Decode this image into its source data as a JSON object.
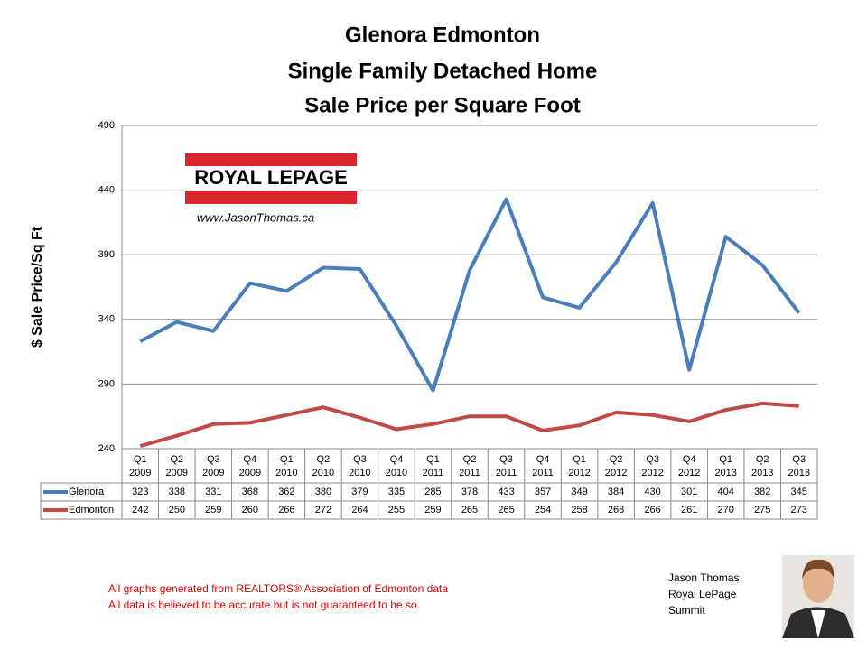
{
  "chart_data": {
    "type": "line",
    "title": [
      "Glenora Edmonton",
      "Single Family Detached Home",
      "Sale Price per Square Foot"
    ],
    "y_label": "$ Sale Price/Sq Ft",
    "categories": [
      [
        "Q1",
        "2009"
      ],
      [
        "Q2",
        "2009"
      ],
      [
        "Q3",
        "2009"
      ],
      [
        "Q4",
        "2009"
      ],
      [
        "Q1",
        "2010"
      ],
      [
        "Q2",
        "2010"
      ],
      [
        "Q3",
        "2010"
      ],
      [
        "Q4",
        "2010"
      ],
      [
        "Q1",
        "2011"
      ],
      [
        "Q2",
        "2011"
      ],
      [
        "Q3",
        "2011"
      ],
      [
        "Q4",
        "2011"
      ],
      [
        "Q1",
        "2012"
      ],
      [
        "Q2",
        "2012"
      ],
      [
        "Q3",
        "2012"
      ],
      [
        "Q4",
        "2012"
      ],
      [
        "Q1",
        "2013"
      ],
      [
        "Q2",
        "2013"
      ],
      [
        "Q3",
        "2013"
      ]
    ],
    "series": [
      {
        "name": "Glenora",
        "color": "#4a7ebb",
        "values": [
          323,
          338,
          331,
          368,
          362,
          380,
          379,
          335,
          285,
          378,
          433,
          357,
          349,
          384,
          430,
          301,
          404,
          382,
          345
        ]
      },
      {
        "name": "Edmonton",
        "color": "#be4b48",
        "values": [
          242,
          250,
          259,
          260,
          266,
          272,
          264,
          255,
          259,
          265,
          265,
          254,
          258,
          268,
          266,
          261,
          270,
          275,
          273
        ]
      }
    ],
    "ylim": [
      240,
      490
    ],
    "yticks": [
      240,
      290,
      340,
      390,
      440,
      490
    ],
    "grid": true
  },
  "logo": {
    "brand": "ROYAL LEPAGE",
    "url": "www.JasonThomas.ca"
  },
  "footnotes": [
    "All graphs generated from REALTORS® Association of Edmonton data",
    "All data is believed to be accurate but is not guaranteed to be so."
  ],
  "signature": [
    "Jason Thomas",
    "Royal LePage",
    "Summit"
  ]
}
